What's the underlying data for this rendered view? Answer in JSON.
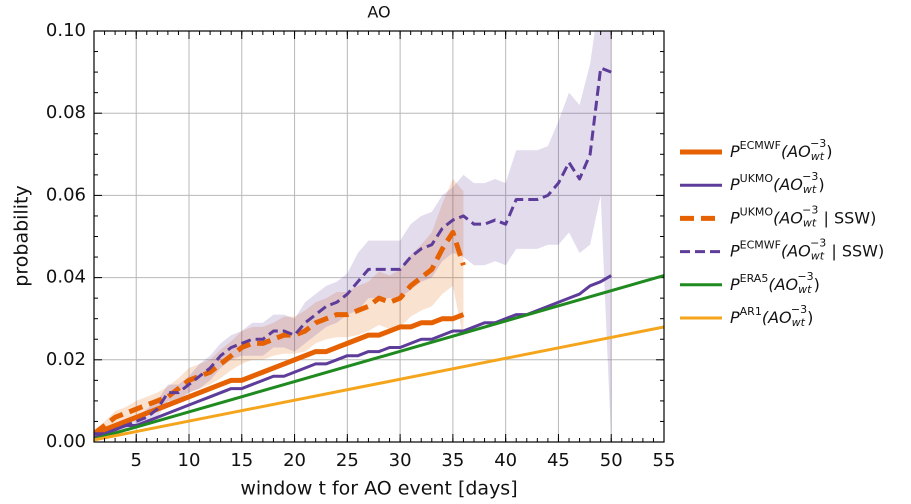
{
  "chart_data": {
    "type": "line",
    "title": "AO",
    "x_label": "window t for AO event [days]",
    "y_label": "probability",
    "xlim": [
      1,
      55
    ],
    "xticks": [
      5,
      10,
      15,
      20,
      25,
      30,
      35,
      40,
      45,
      50,
      55
    ],
    "ylim": [
      0,
      0.1
    ],
    "yticks": [
      {
        "value": 0,
        "label": "0.00"
      },
      {
        "value": 0.02,
        "label": "0.02"
      },
      {
        "value": 0.04,
        "label": "0.04"
      },
      {
        "value": 0.06,
        "label": "0.06"
      },
      {
        "value": 0.08,
        "label": "0.08"
      },
      {
        "value": 0.1,
        "label": "0.10"
      }
    ],
    "grid": true,
    "legend": "right",
    "series": [
      {
        "name": "PECMWF(AOwt−3)",
        "color": "#e66101",
        "dash": "solid",
        "width": 5,
        "x": [
          1,
          2,
          3,
          4,
          5,
          6,
          7,
          8,
          9,
          10,
          11,
          12,
          13,
          14,
          15,
          16,
          17,
          18,
          19,
          20,
          21,
          22,
          23,
          24,
          25,
          26,
          27,
          28,
          29,
          30,
          31,
          32,
          33,
          34,
          35,
          36
        ],
        "values": [
          0.002,
          0.003,
          0.004,
          0.005,
          0.006,
          0.007,
          0.008,
          0.009,
          0.01,
          0.011,
          0.012,
          0.013,
          0.014,
          0.015,
          0.015,
          0.016,
          0.017,
          0.018,
          0.019,
          0.02,
          0.021,
          0.022,
          0.022,
          0.023,
          0.024,
          0.025,
          0.026,
          0.026,
          0.027,
          0.028,
          0.028,
          0.029,
          0.029,
          0.03,
          0.03,
          0.031
        ]
      },
      {
        "name": "PUKMO(AOwt−3)",
        "color": "#5e3c99",
        "dash": "solid",
        "width": 3,
        "x": [
          1,
          2,
          3,
          4,
          5,
          6,
          7,
          8,
          9,
          10,
          11,
          12,
          13,
          14,
          15,
          16,
          17,
          18,
          19,
          20,
          21,
          22,
          23,
          24,
          25,
          26,
          27,
          28,
          29,
          30,
          31,
          32,
          33,
          34,
          35,
          36,
          37,
          38,
          39,
          40,
          41,
          42,
          43,
          44,
          45,
          46,
          47,
          48,
          49,
          50
        ],
        "values": [
          0.001,
          0.002,
          0.003,
          0.004,
          0.004,
          0.005,
          0.006,
          0.007,
          0.008,
          0.009,
          0.01,
          0.011,
          0.012,
          0.013,
          0.013,
          0.014,
          0.015,
          0.016,
          0.016,
          0.017,
          0.018,
          0.019,
          0.019,
          0.02,
          0.021,
          0.021,
          0.022,
          0.022,
          0.023,
          0.023,
          0.024,
          0.025,
          0.025,
          0.026,
          0.027,
          0.027,
          0.028,
          0.029,
          0.029,
          0.03,
          0.031,
          0.031,
          0.032,
          0.033,
          0.034,
          0.035,
          0.036,
          0.038,
          0.039,
          0.0405
        ]
      },
      {
        "name": "PUKMO(AOwt−3 | SSW)",
        "color": "#e66101",
        "dash": "dashed",
        "width": 5,
        "x": [
          1,
          2,
          3,
          4,
          5,
          6,
          7,
          8,
          9,
          10,
          11,
          12,
          13,
          14,
          15,
          16,
          17,
          18,
          19,
          20,
          21,
          22,
          23,
          24,
          25,
          26,
          27,
          28,
          29,
          30,
          31,
          32,
          33,
          34,
          35,
          36
        ],
        "values": [
          0.002,
          0.004,
          0.006,
          0.007,
          0.008,
          0.009,
          0.01,
          0.011,
          0.013,
          0.015,
          0.016,
          0.017,
          0.019,
          0.021,
          0.023,
          0.024,
          0.024,
          0.025,
          0.026,
          0.026,
          0.027,
          0.029,
          0.03,
          0.031,
          0.031,
          0.032,
          0.033,
          0.035,
          0.034,
          0.035,
          0.038,
          0.04,
          0.042,
          0.047,
          0.051,
          0.043
        ],
        "lower": [
          0.001,
          0.003,
          0.0045,
          0.0055,
          0.006,
          0.007,
          0.008,
          0.0085,
          0.0105,
          0.012,
          0.013,
          0.014,
          0.0155,
          0.0175,
          0.019,
          0.02,
          0.02,
          0.021,
          0.0215,
          0.0215,
          0.022,
          0.024,
          0.025,
          0.0255,
          0.0255,
          0.026,
          0.027,
          0.0285,
          0.0275,
          0.028,
          0.0305,
          0.032,
          0.033,
          0.036,
          0.038,
          0.025
        ],
        "upper": [
          0.003,
          0.005,
          0.0075,
          0.0085,
          0.01,
          0.011,
          0.012,
          0.0135,
          0.0155,
          0.018,
          0.019,
          0.02,
          0.0225,
          0.0245,
          0.027,
          0.028,
          0.028,
          0.029,
          0.0305,
          0.0305,
          0.032,
          0.034,
          0.035,
          0.0365,
          0.0365,
          0.038,
          0.039,
          0.0415,
          0.0405,
          0.042,
          0.0455,
          0.048,
          0.051,
          0.058,
          0.064,
          0.061
        ]
      },
      {
        "name": "PECMWF(AOwt−3 | SSW)",
        "color": "#5e3c99",
        "dash": "dashed",
        "width": 3,
        "x": [
          1,
          2,
          3,
          4,
          5,
          6,
          7,
          8,
          9,
          10,
          11,
          12,
          13,
          14,
          15,
          16,
          17,
          18,
          19,
          20,
          21,
          22,
          23,
          24,
          25,
          26,
          27,
          28,
          29,
          30,
          31,
          32,
          33,
          34,
          35,
          36,
          37,
          38,
          39,
          40,
          41,
          42,
          43,
          44,
          45,
          46,
          47,
          48,
          49,
          50
        ],
        "values": [
          0.002,
          0.002,
          0.003,
          0.004,
          0.005,
          0.006,
          0.008,
          0.012,
          0.012,
          0.014,
          0.016,
          0.018,
          0.021,
          0.023,
          0.024,
          0.025,
          0.025,
          0.027,
          0.027,
          0.026,
          0.029,
          0.031,
          0.033,
          0.034,
          0.036,
          0.039,
          0.042,
          0.042,
          0.042,
          0.042,
          0.045,
          0.047,
          0.048,
          0.052,
          0.054,
          0.055,
          0.053,
          0.053,
          0.054,
          0.053,
          0.059,
          0.059,
          0.059,
          0.06,
          0.063,
          0.068,
          0.064,
          0.07,
          0.091,
          0.09
        ],
        "lower": [
          0.001,
          0.001,
          0.002,
          0.003,
          0.004,
          0.004,
          0.006,
          0.01,
          0.01,
          0.012,
          0.013,
          0.015,
          0.018,
          0.02,
          0.021,
          0.021,
          0.021,
          0.023,
          0.023,
          0.022,
          0.024,
          0.026,
          0.028,
          0.029,
          0.031,
          0.032,
          0.035,
          0.035,
          0.035,
          0.035,
          0.037,
          0.039,
          0.04,
          0.044,
          0.046,
          0.045,
          0.043,
          0.043,
          0.044,
          0.043,
          0.047,
          0.047,
          0.047,
          0.048,
          0.048,
          0.051,
          0.046,
          0.048,
          0.06,
          0.0
        ],
        "upper": [
          0.003,
          0.003,
          0.004,
          0.005,
          0.006,
          0.008,
          0.01,
          0.014,
          0.014,
          0.016,
          0.019,
          0.021,
          0.024,
          0.026,
          0.027,
          0.029,
          0.029,
          0.031,
          0.031,
          0.03,
          0.034,
          0.036,
          0.038,
          0.039,
          0.041,
          0.046,
          0.049,
          0.049,
          0.049,
          0.049,
          0.053,
          0.055,
          0.056,
          0.06,
          0.062,
          0.065,
          0.063,
          0.063,
          0.064,
          0.063,
          0.071,
          0.071,
          0.071,
          0.072,
          0.078,
          0.085,
          0.082,
          0.092,
          0.11,
          0.11
        ]
      },
      {
        "name": "PERA5(AOwt−3)",
        "color": "#1f8a1f",
        "dash": "solid",
        "width": 3,
        "x": [
          1,
          55
        ],
        "values": [
          0.0007,
          0.0405
        ]
      },
      {
        "name": "PAR1(AOwt−3)",
        "color": "#f5a51c",
        "dash": "solid",
        "width": 3,
        "x": [
          1,
          55
        ],
        "values": [
          0.0005,
          0.028
        ]
      }
    ]
  }
}
